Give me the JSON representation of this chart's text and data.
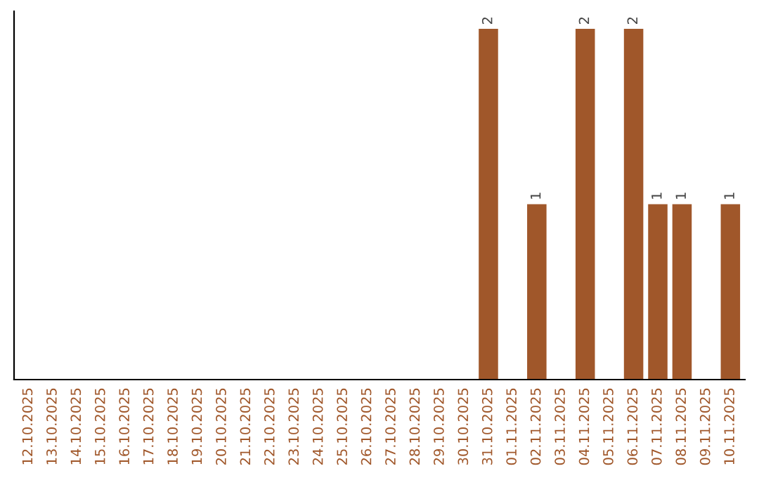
{
  "chart_data": {
    "type": "bar",
    "categories": [
      "12.10.2025",
      "13.10.2025",
      "14.10.2025",
      "15.10.2025",
      "16.10.2025",
      "17.10.2025",
      "18.10.2025",
      "19.10.2025",
      "20.10.2025",
      "21.10.2025",
      "22.10.2025",
      "23.10.2025",
      "24.10.2025",
      "25.10.2025",
      "26.10.2025",
      "27.10.2025",
      "28.10.2025",
      "29.10.2025",
      "30.10.2025",
      "31.10.2025",
      "01.11.2025",
      "02.11.2025",
      "03.11.2025",
      "04.11.2025",
      "05.11.2025",
      "06.11.2025",
      "07.11.2025",
      "08.11.2025",
      "09.11.2025",
      "10.11.2025"
    ],
    "values": [
      null,
      null,
      null,
      null,
      null,
      null,
      null,
      null,
      null,
      null,
      null,
      null,
      null,
      null,
      null,
      null,
      null,
      null,
      null,
      2,
      null,
      1,
      null,
      2,
      null,
      2,
      1,
      1,
      null,
      1
    ],
    "data_labels": true,
    "color": "#a0572a",
    "tick_labels": "x",
    "grid": false,
    "legend": false
  }
}
